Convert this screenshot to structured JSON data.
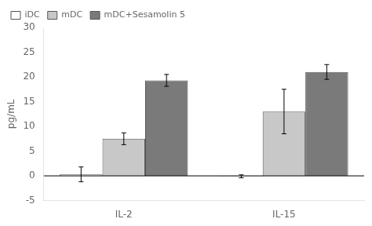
{
  "chart_data": {
    "type": "bar",
    "categories": [
      "IL-2",
      "IL-15"
    ],
    "series": [
      {
        "name": "iDC",
        "color": "#ffffff",
        "values": [
          0.3,
          -0.1
        ],
        "errors": [
          1.5,
          0.3
        ]
      },
      {
        "name": "mDC",
        "color": "#c8c8c8",
        "values": [
          7.5,
          13.0
        ],
        "errors": [
          1.2,
          4.5
        ]
      },
      {
        "name": "mDC+Sesamolin 5",
        "color": "#7a7a7a",
        "values": [
          19.3,
          21.0
        ],
        "errors": [
          1.2,
          1.5
        ]
      }
    ],
    "ylabel": "pg/mL",
    "ylim": [
      -5,
      30
    ],
    "yticks": [
      -5,
      0,
      5,
      10,
      15,
      20,
      25,
      30
    ],
    "grid": false,
    "legend": "upper left"
  }
}
